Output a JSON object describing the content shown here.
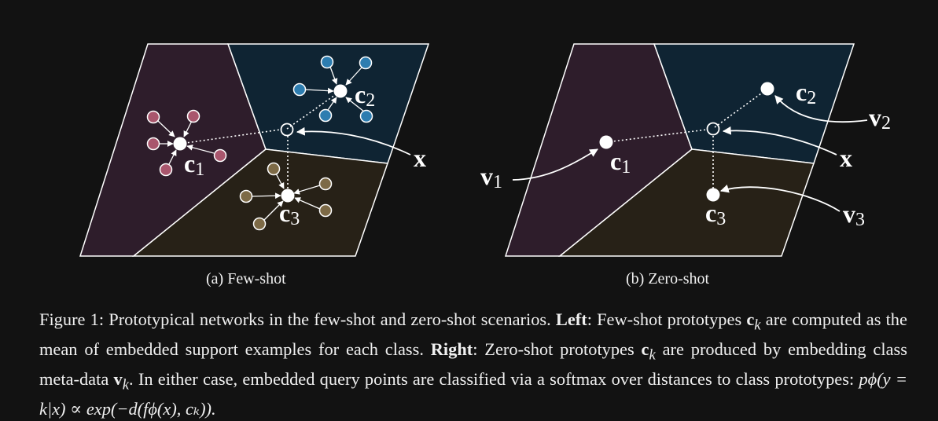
{
  "colors": {
    "background": "#121212",
    "class1_region": "#2e1d2b",
    "class2_region": "#0f2433",
    "class3_region": "#272117",
    "class1_support": "#a9566d",
    "class2_support": "#2d7db0",
    "class3_support": "#7d6a46",
    "lines": "#ffffff"
  },
  "panel_a": {
    "caption": "(a) Few-shot",
    "prototypes": [
      {
        "sym": "c",
        "sub": "1"
      },
      {
        "sym": "c",
        "sub": "2"
      },
      {
        "sym": "c",
        "sub": "3"
      }
    ],
    "query_label": "x"
  },
  "panel_b": {
    "caption": "(b) Zero-shot",
    "prototypes": [
      {
        "sym": "c",
        "sub": "1"
      },
      {
        "sym": "c",
        "sub": "2"
      },
      {
        "sym": "c",
        "sub": "3"
      }
    ],
    "metadata": [
      {
        "sym": "v",
        "sub": "1"
      },
      {
        "sym": "v",
        "sub": "2"
      },
      {
        "sym": "v",
        "sub": "3"
      }
    ],
    "query_label": "x"
  },
  "caption": {
    "figure_label": "Figure 1:",
    "text1": "Prototypical networks in the few-shot and zero-shot scenarios.",
    "left_label": "Left",
    "text2": ": Few-shot prototypes",
    "ck_sym": "c",
    "ck_sub": "k",
    "text3": "are computed as the mean of embedded support examples for each class.",
    "right_label": "Right",
    "text4": ": Zero-shot prototypes",
    "text5": "are produced by embedding class meta-data",
    "vk_sym": "v",
    "vk_sub": "k",
    "text6": ". In either case, embedded query points are classified via a softmax over distances to class prototypes:",
    "formula": "pϕ(y = k|x) ∝ exp(−d(fϕ(x), cₖ))."
  }
}
